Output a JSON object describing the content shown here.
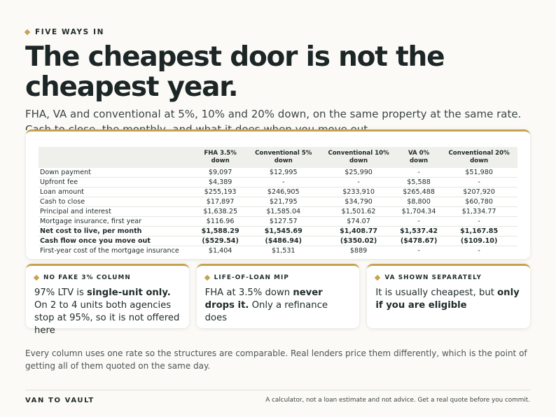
{
  "eyebrow": "FIVE WAYS IN",
  "headline": "The cheapest door is not the cheapest year.",
  "subtitle": "FHA, VA and conventional at 5%, 10% and 20% down, on the same property at the same rate. Cash to close, the monthly, and what it does when you move out.",
  "table": {
    "headers": [
      "",
      "FHA 3.5% down",
      "Conventional 5% down",
      "Conventional 10% down",
      "VA 0% down",
      "Conventional 20% down"
    ],
    "rows": [
      {
        "label": "Down payment",
        "values": [
          "$9,097",
          "$12,995",
          "$25,990",
          "-",
          "$51,980"
        ]
      },
      {
        "label": "Upfront fee",
        "values": [
          "$4,389",
          "-",
          "-",
          "$5,588",
          "-"
        ]
      },
      {
        "label": "Loan amount",
        "values": [
          "$255,193",
          "$246,905",
          "$233,910",
          "$265,488",
          "$207,920"
        ]
      },
      {
        "label": "Cash to close",
        "values": [
          "$17,897",
          "$21,795",
          "$34,790",
          "$8,800",
          "$60,780"
        ]
      },
      {
        "label": "Principal and interest",
        "values": [
          "$1,638.25",
          "$1,585.04",
          "$1,501.62",
          "$1,704.34",
          "$1,334.77"
        ]
      },
      {
        "label": "Mortgage insurance, first year",
        "values": [
          "$116.96",
          "$127.57",
          "$74.07",
          "-",
          "-"
        ]
      },
      {
        "label": "Net cost to live, per month",
        "values": [
          "$1,588.29",
          "$1,545.69",
          "$1,408.77",
          "$1,537.42",
          "$1,167.85"
        ]
      },
      {
        "label": "Cash flow once you move out",
        "values": [
          "($529.54)",
          "($486.94)",
          "($350.02)",
          "($478.67)",
          "($109.10)"
        ]
      },
      {
        "label": "First-year cost of the mortgage insurance",
        "values": [
          "$1,404",
          "$1,531",
          "$889",
          "-",
          "-"
        ]
      }
    ]
  },
  "cards": [
    {
      "tag": "NO FAKE 3% COLUMN",
      "pre": "97% LTV is ",
      "em": "single-unit only.",
      "post": " On 2 to 4 units both agencies stop at 95%, so it is not offered here"
    },
    {
      "tag": "LIFE-OF-LOAN MIP",
      "pre": "FHA at 3.5% down ",
      "em": "never drops it.",
      "post": " Only a refinance does"
    },
    {
      "tag": "VA SHOWN SEPARATELY",
      "pre": "It is usually cheapest, but ",
      "em": "only if you are eligible",
      "post": ""
    }
  ],
  "note": "Every column uses one rate so the structures are comparable. Real lenders price them differently, which is the point of getting all of them quoted on the same day.",
  "footer": {
    "brand": "VAN TO VAULT",
    "disclaimer": "A calculator, not a loan estimate and not advice. Get a real quote before you commit."
  },
  "colors": {
    "accent": "#c6a24f",
    "ink": "#1f2a2a",
    "page": "#fbfaf6"
  }
}
